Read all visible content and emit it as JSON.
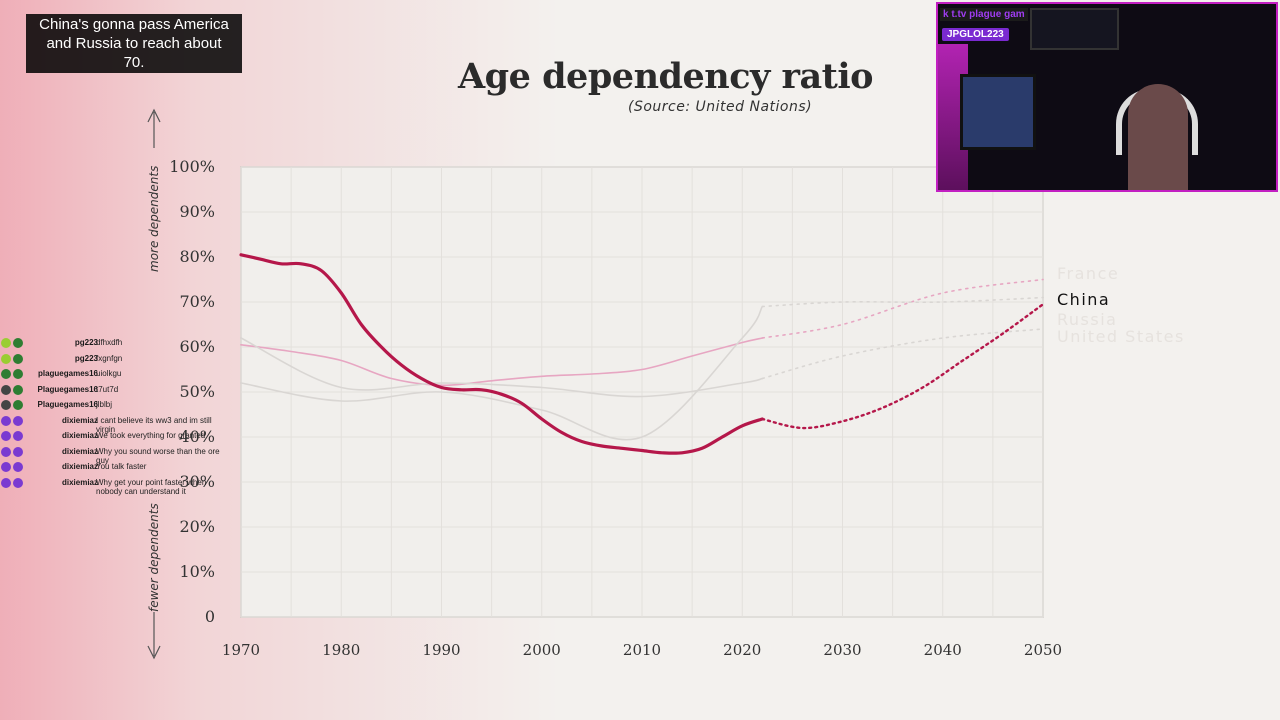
{
  "caption": {
    "line1": "China's gonna pass America",
    "line2": "and Russia to reach about 70."
  },
  "title": "Age dependency ratio",
  "source": "(Source: United Nations)",
  "colors": {
    "china": "#b5174a",
    "france": "#e7a6c2",
    "faded": "#d9d6d3",
    "grid": "#e3e0dc"
  },
  "chart_data": {
    "type": "line",
    "title": "Age dependency ratio",
    "subtitle": "(Source: United Nations)",
    "ylabel_top": "more dependents",
    "ylabel_bottom": "fewer dependents",
    "xlim": [
      1970,
      2050
    ],
    "ylim": [
      0,
      100
    ],
    "x_ticks": [
      "1970",
      "1980",
      "1990",
      "2000",
      "2010",
      "2020",
      "2030",
      "2040",
      "2050"
    ],
    "y_ticks": [
      "0",
      "10%",
      "20%",
      "30%",
      "40%",
      "50%",
      "60%",
      "70%",
      "80%",
      "90%",
      "100%"
    ],
    "y_tick_values": [
      0,
      10,
      20,
      30,
      40,
      50,
      60,
      70,
      80,
      90,
      100
    ],
    "x_tick_values": [
      1970,
      1980,
      1990,
      2000,
      2010,
      2020,
      2030,
      2040,
      2050
    ],
    "series": [
      {
        "name": "China",
        "color": "#b5174a",
        "highlight": true,
        "x": [
          1970,
          1972,
          1974,
          1976,
          1978,
          1980,
          1982,
          1984,
          1986,
          1988,
          1990,
          1992,
          1994,
          1996,
          1998,
          2000,
          2002,
          2004,
          2006,
          2008,
          2010,
          2012,
          2014,
          2016,
          2018,
          2020,
          2022
        ],
        "y": [
          80.5,
          79.5,
          78.5,
          78.5,
          77,
          72,
          65,
          60,
          56,
          53,
          51,
          50.5,
          50.5,
          49.5,
          47.5,
          44,
          41,
          39,
          38,
          37.5,
          37,
          36.5,
          36.5,
          37.5,
          40,
          42.5,
          44
        ],
        "proj_x": [
          2022,
          2026,
          2030,
          2034,
          2038,
          2042,
          2046,
          2050
        ],
        "proj_y": [
          44,
          42,
          43.5,
          46.5,
          51,
          57,
          63,
          69.5
        ]
      },
      {
        "name": "France",
        "color": "#e7a6c2",
        "highlight": false,
        "x": [
          1970,
          1975,
          1980,
          1985,
          1990,
          1995,
          2000,
          2005,
          2010,
          2015,
          2020,
          2022
        ],
        "y": [
          60.5,
          59,
          57,
          53,
          51.5,
          52.5,
          53.5,
          54,
          55,
          58,
          61,
          62
        ],
        "proj_x": [
          2022,
          2030,
          2040,
          2050
        ],
        "proj_y": [
          62,
          65,
          72,
          75
        ]
      },
      {
        "name": "Russia",
        "color": "#d9d6d3",
        "highlight": false,
        "x": [
          1970,
          1980,
          1990,
          2000,
          2010,
          2020,
          2022
        ],
        "y": [
          52,
          48,
          50,
          46,
          40,
          62,
          69
        ],
        "proj_x": [
          2022,
          2030,
          2040,
          2050
        ],
        "proj_y": [
          69,
          70,
          70,
          71
        ]
      },
      {
        "name": "United States",
        "color": "#d9d6d3",
        "highlight": false,
        "x": [
          1970,
          1980,
          1990,
          2000,
          2010,
          2020,
          2022
        ],
        "y": [
          62,
          51,
          52,
          51,
          49,
          52,
          53
        ],
        "proj_x": [
          2022,
          2030,
          2040,
          2050
        ],
        "proj_y": [
          53,
          58,
          62,
          64
        ]
      }
    ]
  },
  "chat": [
    {
      "user": "pg223",
      "msg": "dfhxdfh",
      "badge1": "#9acd32",
      "badge2": "#2e7d32"
    },
    {
      "user": "pg223",
      "msg": "fxgnfgn",
      "badge1": "#9acd32",
      "badge2": "#2e7d32"
    },
    {
      "user": "plaguegames16",
      "msg": "uiolkgu",
      "badge1": "#2e7d32",
      "badge2": "#2e7d32"
    },
    {
      "user": "Plaguegames16",
      "msg": "t7ut7d",
      "badge1": "#444",
      "badge2": "#2e7d32"
    },
    {
      "user": "Plaguegames16",
      "msg": "jlblbj",
      "badge1": "#444",
      "badge2": "#2e7d32"
    },
    {
      "user": "dixiemiaz",
      "msg": "I cant believe its ww3 and im still virgin",
      "badge1": "#7a3ad1",
      "badge2": "#7a3ad1"
    },
    {
      "user": "dixiemiaz",
      "msg": "We took everything for granted",
      "badge1": "#7a3ad1",
      "badge2": "#7a3ad1"
    },
    {
      "user": "dixiemiaz",
      "msg": "Why you sound worse than the ore guy",
      "badge1": "#7a3ad1",
      "badge2": "#7a3ad1"
    },
    {
      "user": "dixiemiaz",
      "msg": "You talk faster",
      "badge1": "#7a3ad1",
      "badge2": "#7a3ad1"
    },
    {
      "user": "dixiemiaz",
      "msg": "Why get your point faster when nobody can understand it",
      "badge1": "#7a3ad1",
      "badge2": "#7a3ad1"
    }
  ],
  "webcam": {
    "channel_prefix": "k t.tv ",
    "channel": "plague gam",
    "user": "JPGLOL223"
  }
}
